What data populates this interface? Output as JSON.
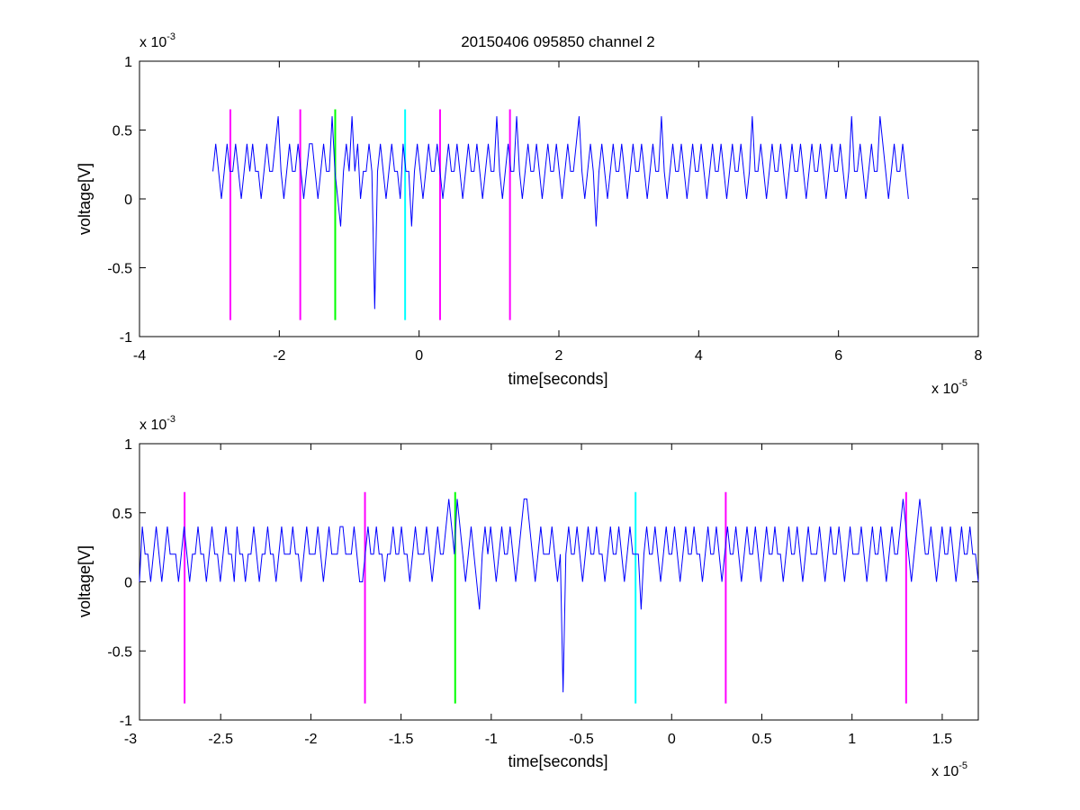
{
  "figure": {
    "title": "20150406 095850 channel 2"
  },
  "colors": {
    "signal": "#0000ff",
    "magenta": "#ff00ff",
    "green": "#00ff00",
    "cyan": "#00ffff",
    "axes": "#000000",
    "background": "#ffffff"
  },
  "chart_data": [
    {
      "type": "line",
      "title": "20150406 095850 channel 2",
      "xlabel": "time[seconds]",
      "ylabel": "voltage[V]",
      "x_multiplier_base": "x 10",
      "x_multiplier_exp": "-5",
      "y_multiplier_base": "x 10",
      "y_multiplier_exp": "-3",
      "xlim": [
        -4,
        8
      ],
      "ylim": [
        -1,
        1
      ],
      "xticks": [
        -4,
        -2,
        0,
        2,
        4,
        6,
        8
      ],
      "xtick_labels": [
        "-4",
        "-2",
        "0",
        "2",
        "4",
        "6",
        "8"
      ],
      "yticks": [
        1,
        0.5,
        0,
        -0.5,
        -1
      ],
      "ytick_labels": [
        "1",
        "0.5",
        "0",
        "-0.5",
        "-1"
      ],
      "grid": false,
      "series": [
        {
          "color": "blue",
          "x_range": [
            -2.95,
            7.0
          ],
          "note_levels": [
            0,
            0.2,
            0.4,
            0.6
          ],
          "values": [
            0.2,
            0.4,
            0.2,
            0.0,
            0.2,
            0.4,
            0.2,
            0.2,
            0.4,
            0.2,
            0.0,
            0.2,
            0.4,
            0.2,
            0.4,
            0.2,
            0.2,
            0.0,
            0.2,
            0.4,
            0.2,
            0.2,
            0.4,
            0.6,
            0.2,
            0.0,
            0.2,
            0.4,
            0.2,
            0.2,
            0.4,
            0.2,
            0.0,
            0.2,
            0.4,
            0.4,
            0.2,
            0.0,
            0.2,
            0.4,
            0.2,
            0.2,
            0.6,
            0.2,
            0.0,
            -0.2,
            0.2,
            0.4,
            0.2,
            0.6,
            0.2,
            0.4,
            0.0,
            0.2,
            0.2,
            0.4,
            0.2,
            -0.8,
            0.2,
            0.4,
            0.2,
            0.0,
            0.2,
            0.4,
            0.2,
            0.2,
            0.0,
            0.4,
            0.2,
            0.2,
            -0.2,
            0.2,
            0.4,
            0.2,
            0.0,
            0.2,
            0.4,
            0.2,
            0.2,
            0.4,
            0.2,
            0.0,
            0.2,
            0.4,
            0.2,
            0.2,
            0.4,
            0.2,
            0.0,
            0.2,
            0.4,
            0.2,
            0.2,
            0.4,
            0.2,
            0.0,
            0.2,
            0.4,
            0.2,
            0.2,
            0.6,
            0.2,
            0.0,
            0.2,
            0.4,
            0.2,
            0.2,
            0.6,
            0.2,
            0.0,
            0.2,
            0.4,
            0.2,
            0.2,
            0.4,
            0.2,
            0.0,
            0.2,
            0.4,
            0.2,
            0.2,
            0.4,
            0.2,
            0.0,
            0.2,
            0.4,
            0.2,
            0.2,
            0.4,
            0.6,
            0.2,
            0.0,
            0.2,
            0.4,
            0.2,
            -0.2,
            0.2,
            0.4,
            0.2,
            0.0,
            0.2,
            0.4,
            0.2,
            0.2,
            0.4,
            0.2,
            0.0,
            0.2,
            0.4,
            0.2,
            0.2,
            0.4,
            0.2,
            0.0,
            0.2,
            0.4,
            0.2,
            0.2,
            0.6,
            0.2,
            0.0,
            0.2,
            0.4,
            0.2,
            0.2,
            0.4,
            0.2,
            0.0,
            0.2,
            0.4,
            0.2,
            0.2,
            0.4,
            0.2,
            0.0,
            0.2,
            0.4,
            0.2,
            0.2,
            0.4,
            0.2,
            0.0,
            0.2,
            0.4,
            0.2,
            0.2,
            0.4,
            0.2,
            0.0,
            0.2,
            0.6,
            0.2,
            0.2,
            0.4,
            0.2,
            0.0,
            0.2,
            0.4,
            0.2,
            0.2,
            0.4,
            0.2,
            0.0,
            0.2,
            0.4,
            0.2,
            0.2,
            0.4,
            0.2,
            0.0,
            0.2,
            0.4,
            0.2,
            0.2,
            0.4,
            0.2,
            0.0,
            0.2,
            0.4,
            0.2,
            0.2,
            0.4,
            0.2,
            0.0,
            0.2,
            0.6,
            0.2,
            0.2,
            0.4,
            0.2,
            0.0,
            0.2,
            0.4,
            0.2,
            0.2,
            0.6,
            0.4,
            0.2,
            0.0,
            0.2,
            0.4,
            0.2,
            0.2,
            0.4,
            0.2,
            0.0
          ]
        }
      ],
      "markers": [
        {
          "x": -2.7,
          "color": "magenta",
          "y_from": -0.88,
          "y_to": 0.65
        },
        {
          "x": -1.7,
          "color": "magenta",
          "y_from": -0.88,
          "y_to": 0.65
        },
        {
          "x": -1.2,
          "color": "green",
          "y_from": -0.88,
          "y_to": 0.65
        },
        {
          "x": -0.2,
          "color": "cyan",
          "y_from": -0.88,
          "y_to": 0.65
        },
        {
          "x": 0.3,
          "color": "magenta",
          "y_from": -0.88,
          "y_to": 0.65
        },
        {
          "x": 1.3,
          "color": "magenta",
          "y_from": -0.88,
          "y_to": 0.65
        }
      ]
    },
    {
      "type": "line",
      "title": "",
      "xlabel": "time[seconds]",
      "ylabel": "voltage[V]",
      "x_multiplier_base": "x 10",
      "x_multiplier_exp": "-5",
      "y_multiplier_base": "x 10",
      "y_multiplier_exp": "-3",
      "xlim": [
        -2.95,
        1.7
      ],
      "ylim": [
        -1,
        1
      ],
      "xticks": [
        -3,
        -2.5,
        -2,
        -1.5,
        -1,
        -0.5,
        0,
        0.5,
        1,
        1.5
      ],
      "xtick_labels": [
        "-3",
        "-2.5",
        "-2",
        "-1.5",
        "-1",
        "-0.5",
        "0",
        "0.5",
        "1",
        "1.5"
      ],
      "yticks": [
        1,
        0.5,
        0,
        -0.5,
        -1
      ],
      "ytick_labels": [
        "1",
        "0.5",
        "0",
        "-0.5",
        "-1"
      ],
      "grid": false,
      "series": [
        {
          "color": "blue",
          "x_range": [
            -2.95,
            1.7
          ],
          "values": [
            0.0,
            0.4,
            0.2,
            0.2,
            0.0,
            0.2,
            0.4,
            0.2,
            0.0,
            0.2,
            0.4,
            0.2,
            0.2,
            0.2,
            0.0,
            0.2,
            0.4,
            0.2,
            0.0,
            0.2,
            0.2,
            0.4,
            0.2,
            0.2,
            0.0,
            0.2,
            0.4,
            0.2,
            0.2,
            0.0,
            0.2,
            0.4,
            0.2,
            0.2,
            0.0,
            0.4,
            0.2,
            0.2,
            0.0,
            0.2,
            0.2,
            0.4,
            0.2,
            0.0,
            0.2,
            0.2,
            0.4,
            0.2,
            0.2,
            0.0,
            0.2,
            0.4,
            0.2,
            0.2,
            0.2,
            0.4,
            0.2,
            0.2,
            0.0,
            0.2,
            0.4,
            0.2,
            0.2,
            0.2,
            0.4,
            0.2,
            0.0,
            0.2,
            0.4,
            0.2,
            0.2,
            0.2,
            0.4,
            0.4,
            0.2,
            0.2,
            0.2,
            0.4,
            0.2,
            0.0,
            0.0,
            0.2,
            0.4,
            0.2,
            0.2,
            0.4,
            0.2,
            0.2,
            0.0,
            0.2,
            0.2,
            0.4,
            0.2,
            0.2,
            0.4,
            0.2,
            0.2,
            0.0,
            0.2,
            0.4,
            0.2,
            0.2,
            0.2,
            0.4,
            0.2,
            0.0,
            0.2,
            0.4,
            0.2,
            0.2,
            0.4,
            0.6,
            0.4,
            0.2,
            0.6,
            0.4,
            0.2,
            0.0,
            0.2,
            0.4,
            0.2,
            0.0,
            -0.2,
            0.2,
            0.4,
            0.2,
            0.4,
            0.2,
            0.0,
            0.2,
            0.4,
            0.2,
            0.2,
            0.4,
            0.2,
            0.0,
            0.2,
            0.4,
            0.6,
            0.6,
            0.4,
            0.2,
            0.0,
            0.2,
            0.4,
            0.2,
            0.2,
            0.2,
            0.4,
            0.2,
            0.0,
            0.2,
            -0.8,
            0.2,
            0.4,
            0.2,
            0.2,
            0.4,
            0.2,
            0.0,
            0.2,
            0.4,
            0.2,
            0.2,
            0.4,
            0.2,
            0.2,
            0.0,
            0.2,
            0.4,
            0.2,
            0.2,
            0.4,
            0.2,
            0.0,
            0.2,
            0.4,
            0.2,
            0.2,
            0.2,
            -0.2,
            0.2,
            0.4,
            0.2,
            0.2,
            0.4,
            0.2,
            0.0,
            0.2,
            0.4,
            0.2,
            0.2,
            0.4,
            0.2,
            0.0,
            0.2,
            0.4,
            0.2,
            0.2,
            0.4,
            0.2,
            0.2,
            0.0,
            0.2,
            0.4,
            0.2,
            0.2,
            0.4,
            0.2,
            0.0,
            0.2,
            0.4,
            0.2,
            0.2,
            0.4,
            0.2,
            0.0,
            0.2,
            0.4,
            0.2,
            0.2,
            0.4,
            0.2,
            0.0,
            0.2,
            0.4,
            0.2,
            0.2,
            0.4,
            0.2,
            0.2,
            0.0,
            0.2,
            0.4,
            0.2,
            0.2,
            0.4,
            0.2,
            0.0,
            0.2,
            0.4,
            0.2,
            0.2,
            0.2,
            0.4,
            0.2,
            0.0,
            0.2,
            0.4,
            0.2,
            0.2,
            0.4,
            0.2,
            0.0,
            0.2,
            0.4,
            0.2,
            0.2,
            0.2,
            0.4,
            0.2,
            0.0,
            0.2,
            0.4,
            0.2,
            0.2,
            0.4,
            0.2,
            0.0,
            0.2,
            0.4,
            0.2,
            0.2,
            0.4,
            0.6,
            0.4,
            0.2,
            0.0,
            0.2,
            0.4,
            0.6,
            0.4,
            0.2,
            0.2,
            0.4,
            0.2,
            0.0,
            0.2,
            0.4,
            0.2,
            0.2,
            0.4,
            0.2,
            0.0,
            0.2,
            0.4,
            0.2,
            0.2,
            0.4,
            0.2,
            0.2,
            0.0
          ]
        }
      ],
      "markers": [
        {
          "x": -2.7,
          "color": "magenta",
          "y_from": -0.88,
          "y_to": 0.65
        },
        {
          "x": -1.7,
          "color": "magenta",
          "y_from": -0.88,
          "y_to": 0.65
        },
        {
          "x": -1.2,
          "color": "green",
          "y_from": -0.88,
          "y_to": 0.65
        },
        {
          "x": -0.2,
          "color": "cyan",
          "y_from": -0.88,
          "y_to": 0.65
        },
        {
          "x": 0.3,
          "color": "magenta",
          "y_from": -0.88,
          "y_to": 0.65
        },
        {
          "x": 1.3,
          "color": "magenta",
          "y_from": -0.88,
          "y_to": 0.65
        }
      ]
    }
  ]
}
